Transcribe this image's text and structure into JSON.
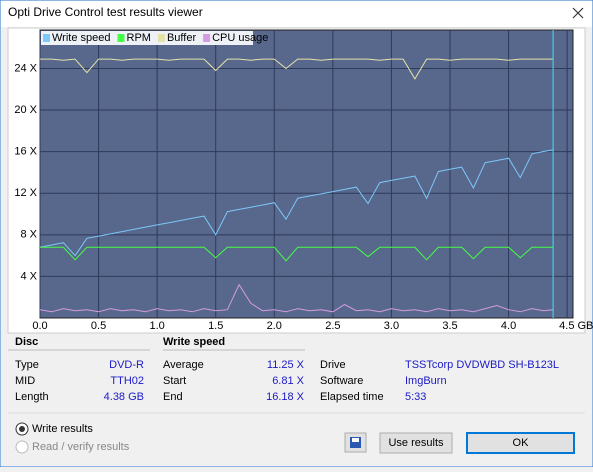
{
  "window": {
    "title": "Opti Drive Control test results viewer"
  },
  "chart_data": {
    "type": "line",
    "x": [
      0,
      0.1,
      0.2,
      0.3,
      0.4,
      0.5,
      0.6,
      0.7,
      0.8,
      0.9,
      1.0,
      1.1,
      1.2,
      1.3,
      1.4,
      1.5,
      1.6,
      1.7,
      1.8,
      1.9,
      2.0,
      2.1,
      2.2,
      2.3,
      2.4,
      2.5,
      2.6,
      2.7,
      2.8,
      2.9,
      3.0,
      3.1,
      3.2,
      3.3,
      3.4,
      3.5,
      3.6,
      3.7,
      3.8,
      3.9,
      4.0,
      4.1,
      4.2,
      4.3,
      4.38
    ],
    "series": [
      {
        "name": "Write speed",
        "color": "#7cc8f8",
        "values": [
          6.81,
          7.02,
          7.24,
          6.0,
          7.67,
          7.88,
          8.09,
          8.31,
          8.52,
          8.74,
          8.95,
          9.16,
          9.38,
          9.59,
          9.8,
          8.0,
          10.23,
          10.45,
          10.66,
          10.87,
          11.09,
          9.5,
          11.52,
          11.73,
          11.94,
          12.16,
          12.37,
          12.59,
          11.0,
          13.01,
          13.23,
          13.44,
          13.65,
          11.5,
          14.08,
          14.3,
          14.51,
          12.5,
          14.94,
          15.15,
          15.37,
          13.5,
          15.79,
          16.01,
          16.18
        ]
      },
      {
        "name": "RPM",
        "color": "#44ff44",
        "values": [
          6.8,
          6.8,
          6.8,
          5.6,
          6.8,
          6.8,
          6.8,
          6.8,
          6.8,
          6.8,
          6.8,
          6.8,
          6.8,
          6.8,
          6.8,
          5.8,
          6.8,
          6.8,
          6.8,
          6.8,
          6.8,
          5.5,
          6.8,
          6.8,
          6.8,
          6.8,
          6.8,
          6.8,
          5.9,
          6.8,
          6.8,
          6.8,
          6.8,
          5.6,
          6.8,
          6.8,
          6.8,
          5.7,
          6.8,
          6.8,
          6.8,
          5.8,
          6.8,
          6.8,
          6.8
        ]
      },
      {
        "name": "Buffer",
        "color": "#e4e4a8",
        "values": [
          24.9,
          24.9,
          24.8,
          24.9,
          23.6,
          24.9,
          24.9,
          24.8,
          24.9,
          24.9,
          24.9,
          24.8,
          24.9,
          24.9,
          24.9,
          23.8,
          24.9,
          24.9,
          24.8,
          24.9,
          24.9,
          24.0,
          24.9,
          24.9,
          24.8,
          24.9,
          24.9,
          24.9,
          24.9,
          24.8,
          24.9,
          24.9,
          23.0,
          24.9,
          24.9,
          24.8,
          24.9,
          24.9,
          24.9,
          24.9,
          24.8,
          24.9,
          24.9,
          24.9,
          24.9
        ]
      },
      {
        "name": "CPU usage",
        "color": "#d49ce0",
        "values": [
          0.8,
          0.6,
          0.9,
          0.7,
          0.8,
          0.6,
          0.9,
          0.7,
          0.8,
          0.6,
          0.9,
          0.7,
          0.8,
          0.6,
          0.9,
          0.7,
          0.8,
          3.2,
          1.4,
          0.7,
          0.8,
          0.6,
          0.9,
          0.7,
          0.8,
          0.6,
          1.3,
          0.7,
          0.8,
          0.6,
          0.9,
          0.7,
          0.8,
          0.6,
          0.9,
          0.7,
          0.8,
          0.6,
          0.9,
          1.2,
          0.8,
          0.6,
          0.9,
          0.7,
          0.8
        ]
      }
    ],
    "xlim": [
      0,
      4.55
    ],
    "xticks": [
      {
        "value": 0,
        "label": "0.0"
      },
      0.5,
      {
        "value": 1,
        "label": "1.0"
      },
      1.5,
      {
        "value": 2,
        "label": "2.0"
      },
      2.5,
      {
        "value": 3,
        "label": "3.0"
      },
      3.5,
      {
        "value": 4,
        "label": "4.0"
      },
      {
        "value": 4.5,
        "label": "4.5 GB"
      }
    ],
    "ylim": [
      0,
      27.7
    ],
    "yticks": [
      {
        "value": 4,
        "label": "4 X"
      },
      {
        "value": 8,
        "label": "8 X"
      },
      {
        "value": 12,
        "label": "12 X"
      },
      {
        "value": 16,
        "label": "16 X"
      },
      {
        "value": 20,
        "label": "20 X"
      },
      {
        "value": 24,
        "label": "24 X"
      }
    ],
    "grid": true
  },
  "disc": {
    "heading": "Disc",
    "rows": [
      [
        "Type",
        "DVD-R"
      ],
      [
        "MID",
        "TTH02"
      ],
      [
        "Length",
        "4.38 GB"
      ]
    ]
  },
  "write_speed": {
    "heading": "Write speed",
    "rows": [
      [
        "Average",
        "11.25 X"
      ],
      [
        "Start",
        "6.81 X"
      ],
      [
        "End",
        "16.18 X"
      ]
    ]
  },
  "info": {
    "rows": [
      [
        "Drive",
        "TSSTcorp  DVDWBD SH-B123L"
      ],
      [
        "Software",
        "ImgBurn"
      ],
      [
        "Elapsed time",
        "5:33"
      ]
    ]
  },
  "options": [
    "Write results",
    "Read / verify results"
  ],
  "buttons": [
    "Use results",
    "OK"
  ]
}
